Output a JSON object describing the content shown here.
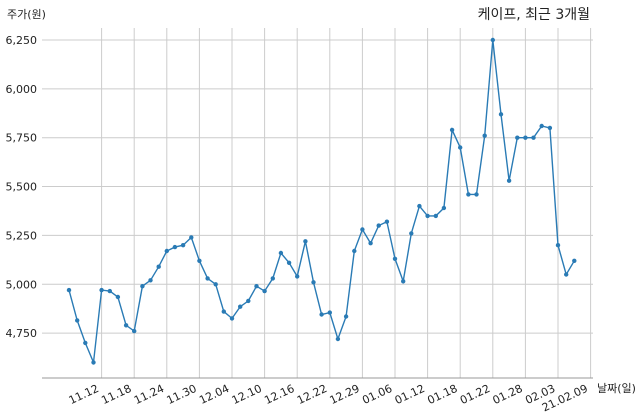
{
  "chart_data": {
    "type": "line",
    "title": "케이프, 최근 3개월",
    "ylabel": "주가(원)",
    "xlabel": "날짜(일)",
    "ylim": [
      4550,
      6320
    ],
    "yticks": [
      4750,
      5000,
      5250,
      5500,
      5750,
      6000,
      6250
    ],
    "ytick_labels": [
      "4,750",
      "5,000",
      "5,250",
      "5,500",
      "5,750",
      "6,000",
      "6,250"
    ],
    "xtick_labels": [
      "11.12",
      "11.18",
      "11.24",
      "11.30",
      "12.04",
      "12.10",
      "12.16",
      "12.22",
      "12.29",
      "01.06",
      "01.12",
      "01.18",
      "01.22",
      "01.28",
      "02.03",
      "21.02.09"
    ],
    "xtick_index": [
      4,
      8,
      12,
      16,
      20,
      24,
      28,
      32,
      36,
      40,
      44,
      48,
      52,
      56,
      60,
      64
    ],
    "grid": true,
    "line_color": "#2a7bb5",
    "series": [
      {
        "values": [
          4970,
          4815,
          4700,
          4600,
          4970,
          4965,
          4935,
          4790,
          4760,
          4990,
          5020,
          5090,
          5170,
          5190,
          5200,
          5240,
          5120,
          5030,
          5000,
          4860,
          4825,
          4885,
          4915,
          4990,
          4965,
          5030,
          5160,
          5110,
          5040,
          5220,
          5010,
          4845,
          4855,
          4720,
          4835,
          5170,
          5280,
          5210,
          5300,
          5320,
          5130,
          5015,
          5260,
          5400,
          5350,
          5350,
          5390,
          5790,
          5700,
          5460,
          5460,
          5760,
          6250,
          5870,
          5530,
          5750,
          5750,
          5750,
          5810,
          5800,
          5200,
          5050,
          5120
        ]
      }
    ]
  }
}
